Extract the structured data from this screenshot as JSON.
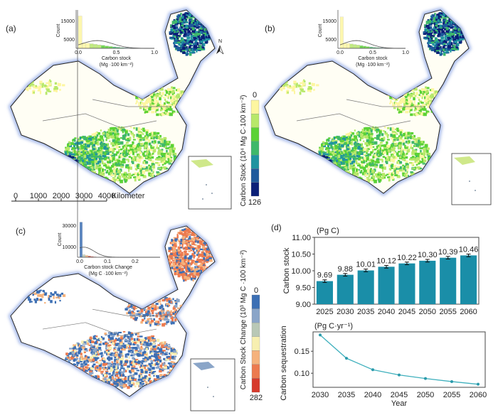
{
  "panels": {
    "a": "(a)",
    "b": "(b)",
    "c": "(c)",
    "d": "(d)"
  },
  "north_arrow": "N",
  "scale_bar": {
    "ticks": [
      "0",
      "1000",
      "2000",
      "3000",
      "4000"
    ],
    "unit": "Kilometer"
  },
  "colorbar_stock": {
    "label": "Carbon Stock (10⁴ Mg C·100 km⁻²)",
    "min_label": "0",
    "max_label": "126",
    "colors": [
      "#fdf6a0",
      "#b7e86a",
      "#5bd236",
      "#3fb86a",
      "#1f94a0",
      "#1f5a9c",
      "#0b1f78"
    ]
  },
  "colorbar_change": {
    "label": "Carbon Stock Change (10³ Mg C ·100 km⁻²)",
    "min_label": "0",
    "max_label": "282",
    "colors": [
      "#3c6fb4",
      "#8aa5c8",
      "#b9c8b6",
      "#f7efb0",
      "#f5b27c",
      "#ec7a4f",
      "#d63a2c"
    ]
  },
  "histograms": [
    {
      "panel": "a",
      "ylabel": "Count",
      "xlabel": "Carbon stock",
      "xunit": "(Mg ·100 km⁻²)",
      "yticks": [
        "15000",
        "5000"
      ],
      "xticks": [
        "0.0",
        "0.5",
        "1.0"
      ],
      "bars": [
        17500,
        3000,
        2800,
        2500,
        2200,
        1900,
        1600,
        1300,
        1000,
        800,
        600,
        400,
        300,
        200,
        150,
        100,
        80,
        60,
        40,
        20
      ]
    },
    {
      "panel": "b",
      "ylabel": "Count",
      "xlabel": "Carbon stock",
      "xunit": "(Mg ·100 km⁻²)",
      "yticks": [
        "15000",
        "5000"
      ],
      "xticks": [
        "0.0",
        "0.5",
        "1.0"
      ],
      "bars": [
        17000,
        2900,
        2700,
        2400,
        2100,
        1800,
        1500,
        1200,
        950,
        750,
        550,
        400,
        300,
        200,
        150,
        100,
        80,
        60,
        40,
        20
      ]
    },
    {
      "panel": "c",
      "ylabel": "Count",
      "xlabel": "Carbon stock Change",
      "xunit": "(Mg C ·100 km⁻²)",
      "yticks": [
        "30000",
        "10000"
      ],
      "xticks": [
        "0.0",
        "0.1",
        "0.2"
      ],
      "bars": [
        33000,
        2500,
        1800,
        1200,
        700,
        400,
        200,
        100,
        50,
        20
      ]
    }
  ],
  "chart_data": [
    {
      "type": "bar",
      "unit": "(Pg C)",
      "ylabel": "Carbon stock",
      "categories": [
        "2025",
        "2030",
        "2035",
        "2040",
        "2045",
        "2050",
        "2055",
        "2060"
      ],
      "values": [
        9.69,
        9.88,
        10.01,
        10.12,
        10.22,
        10.3,
        10.39,
        10.46
      ],
      "labels": [
        "9.69",
        "9.88",
        "10.01",
        "10.12",
        "10.22",
        "10.30",
        "10.39",
        "10.46"
      ],
      "error": 0.04,
      "ylim": [
        9.0,
        11.0
      ],
      "yticks": [
        "9.00",
        "9.50",
        "10.00",
        "10.50",
        "11.00"
      ],
      "color": "#1a8ea8"
    },
    {
      "type": "line",
      "unit": "(Pg C·yr⁻¹)",
      "ylabel": "Carbon sequestration",
      "xlabel": "Year",
      "x": [
        "2030",
        "2035",
        "2040",
        "2045",
        "2050",
        "2055",
        "2060"
      ],
      "values": [
        0.187,
        0.134,
        0.108,
        0.096,
        0.088,
        0.081,
        0.075
      ],
      "ylim": [
        0.068,
        0.194
      ],
      "yticks": [
        "0.10",
        "0.15"
      ],
      "color": "#3fb0bd"
    }
  ]
}
